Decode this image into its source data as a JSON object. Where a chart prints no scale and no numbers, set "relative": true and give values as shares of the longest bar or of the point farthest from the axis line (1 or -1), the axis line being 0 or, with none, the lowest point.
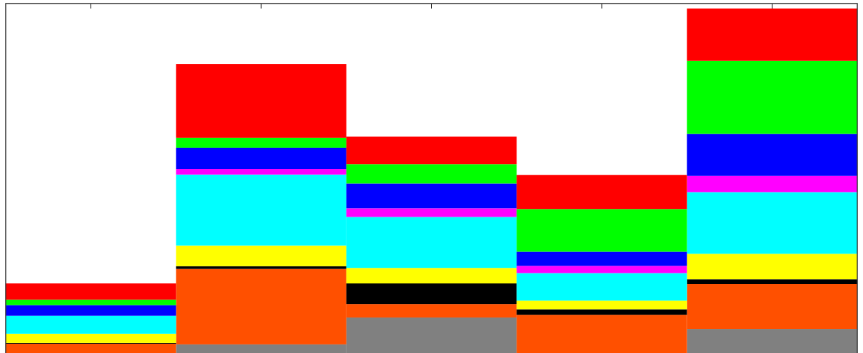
{
  "chart_data": {
    "type": "bar",
    "relative": true,
    "stacked": true,
    "categories": [
      null,
      null,
      null,
      null,
      null
    ],
    "series": [
      {
        "color": "#808080",
        "values": [
          0,
          0.025,
          0.103,
          0,
          0.07
        ]
      },
      {
        "color": "#ff5000",
        "values": [
          0.027,
          0.219,
          0.039,
          0.111,
          0.13
        ]
      },
      {
        "color": "#000000",
        "values": [
          0.002,
          0.008,
          0.06,
          0.016,
          0.014
        ]
      },
      {
        "color": "#ffff00",
        "values": [
          0.027,
          0.06,
          0.045,
          0.025,
          0.074
        ]
      },
      {
        "color": "#00ffff",
        "values": [
          0.052,
          0.206,
          0.148,
          0.08,
          0.179
        ]
      },
      {
        "color": "#ff00ff",
        "values": [
          0,
          0.016,
          0.025,
          0.021,
          0.047
        ]
      },
      {
        "color": "#0000ff",
        "values": [
          0.031,
          0.062,
          0.072,
          0.041,
          0.122
        ]
      },
      {
        "color": "#00ff00",
        "values": [
          0.016,
          0.029,
          0.056,
          0.124,
          0.212
        ]
      },
      {
        "color": "#ff0000",
        "values": [
          0.047,
          0.214,
          0.08,
          0.099,
          0.152
        ]
      }
    ]
  }
}
